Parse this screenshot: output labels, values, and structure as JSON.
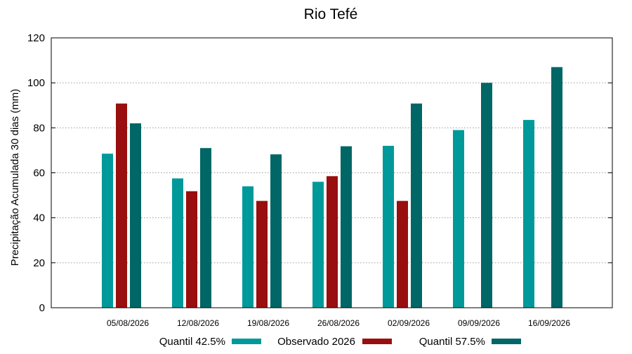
{
  "chart_data": {
    "type": "bar",
    "title": "Rio Tefé",
    "ylabel": "Precipitação Acumulada 30 dias (mm)",
    "xlabel": "",
    "ylim": [
      0,
      120
    ],
    "yticks": [
      0,
      20,
      40,
      60,
      80,
      100,
      120
    ],
    "grid": true,
    "legend_position": "bottom",
    "categories": [
      "05/08/2026",
      "12/08/2026",
      "19/08/2026",
      "26/08/2026",
      "02/09/2026",
      "09/09/2026",
      "16/09/2026"
    ],
    "series": [
      {
        "name": "Quantil 42.5%",
        "color": "#009999",
        "values": [
          68.5,
          57.5,
          54.0,
          56.0,
          72.0,
          79.0,
          83.5
        ]
      },
      {
        "name": "Observado 2026",
        "color": "#990e0e",
        "values": [
          90.8,
          51.8,
          47.5,
          58.5,
          47.5,
          null,
          null
        ]
      },
      {
        "name": "Quantil 57.5%",
        "color": "#006666",
        "values": [
          82.0,
          71.0,
          68.2,
          71.8,
          90.8,
          100.0,
          107.0
        ]
      }
    ]
  }
}
